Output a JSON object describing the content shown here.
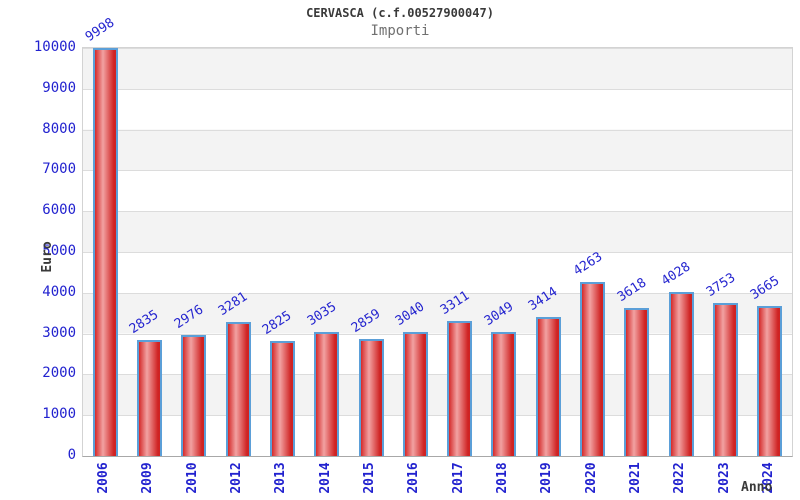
{
  "chart_data": {
    "type": "bar",
    "title": "CERVASCA (c.f.00527900047)",
    "subtitle": "Importi",
    "xlabel": "Anno",
    "ylabel": "Euro",
    "categories": [
      "2006",
      "2009",
      "2010",
      "2012",
      "2013",
      "2014",
      "2015",
      "2016",
      "2017",
      "2018",
      "2019",
      "2020",
      "2021",
      "2022",
      "2023",
      "2024"
    ],
    "values": [
      9998,
      2835,
      2976,
      3281,
      2825,
      3035,
      2859,
      3040,
      3311,
      3049,
      3414,
      4263,
      3618,
      4028,
      3753,
      3665
    ],
    "ylim": [
      0,
      10000
    ],
    "ytick_step": 1000,
    "yticks": [
      0,
      1000,
      2000,
      3000,
      4000,
      5000,
      6000,
      7000,
      8000,
      9000,
      10000
    ],
    "grid": "horizontal-bands",
    "legend": "none",
    "bar_labels_rotated": true,
    "colors": {
      "bar_edge": "#5b9fd8",
      "bar_fill_dark": "#d42a2a",
      "bar_fill_light": "#f2a2a2",
      "bar_fill_right": "#cf2323",
      "value_label_text": "#2525cf",
      "tick_label_text": "#2222cf",
      "band_gray": "#f3f3f3",
      "band_white": "#ffffff",
      "grid_line": "#dcdcdc",
      "title_text": "#3a3a3a",
      "subtitle_text": "#707070",
      "axis_label_text": "#3a3a3a"
    }
  }
}
